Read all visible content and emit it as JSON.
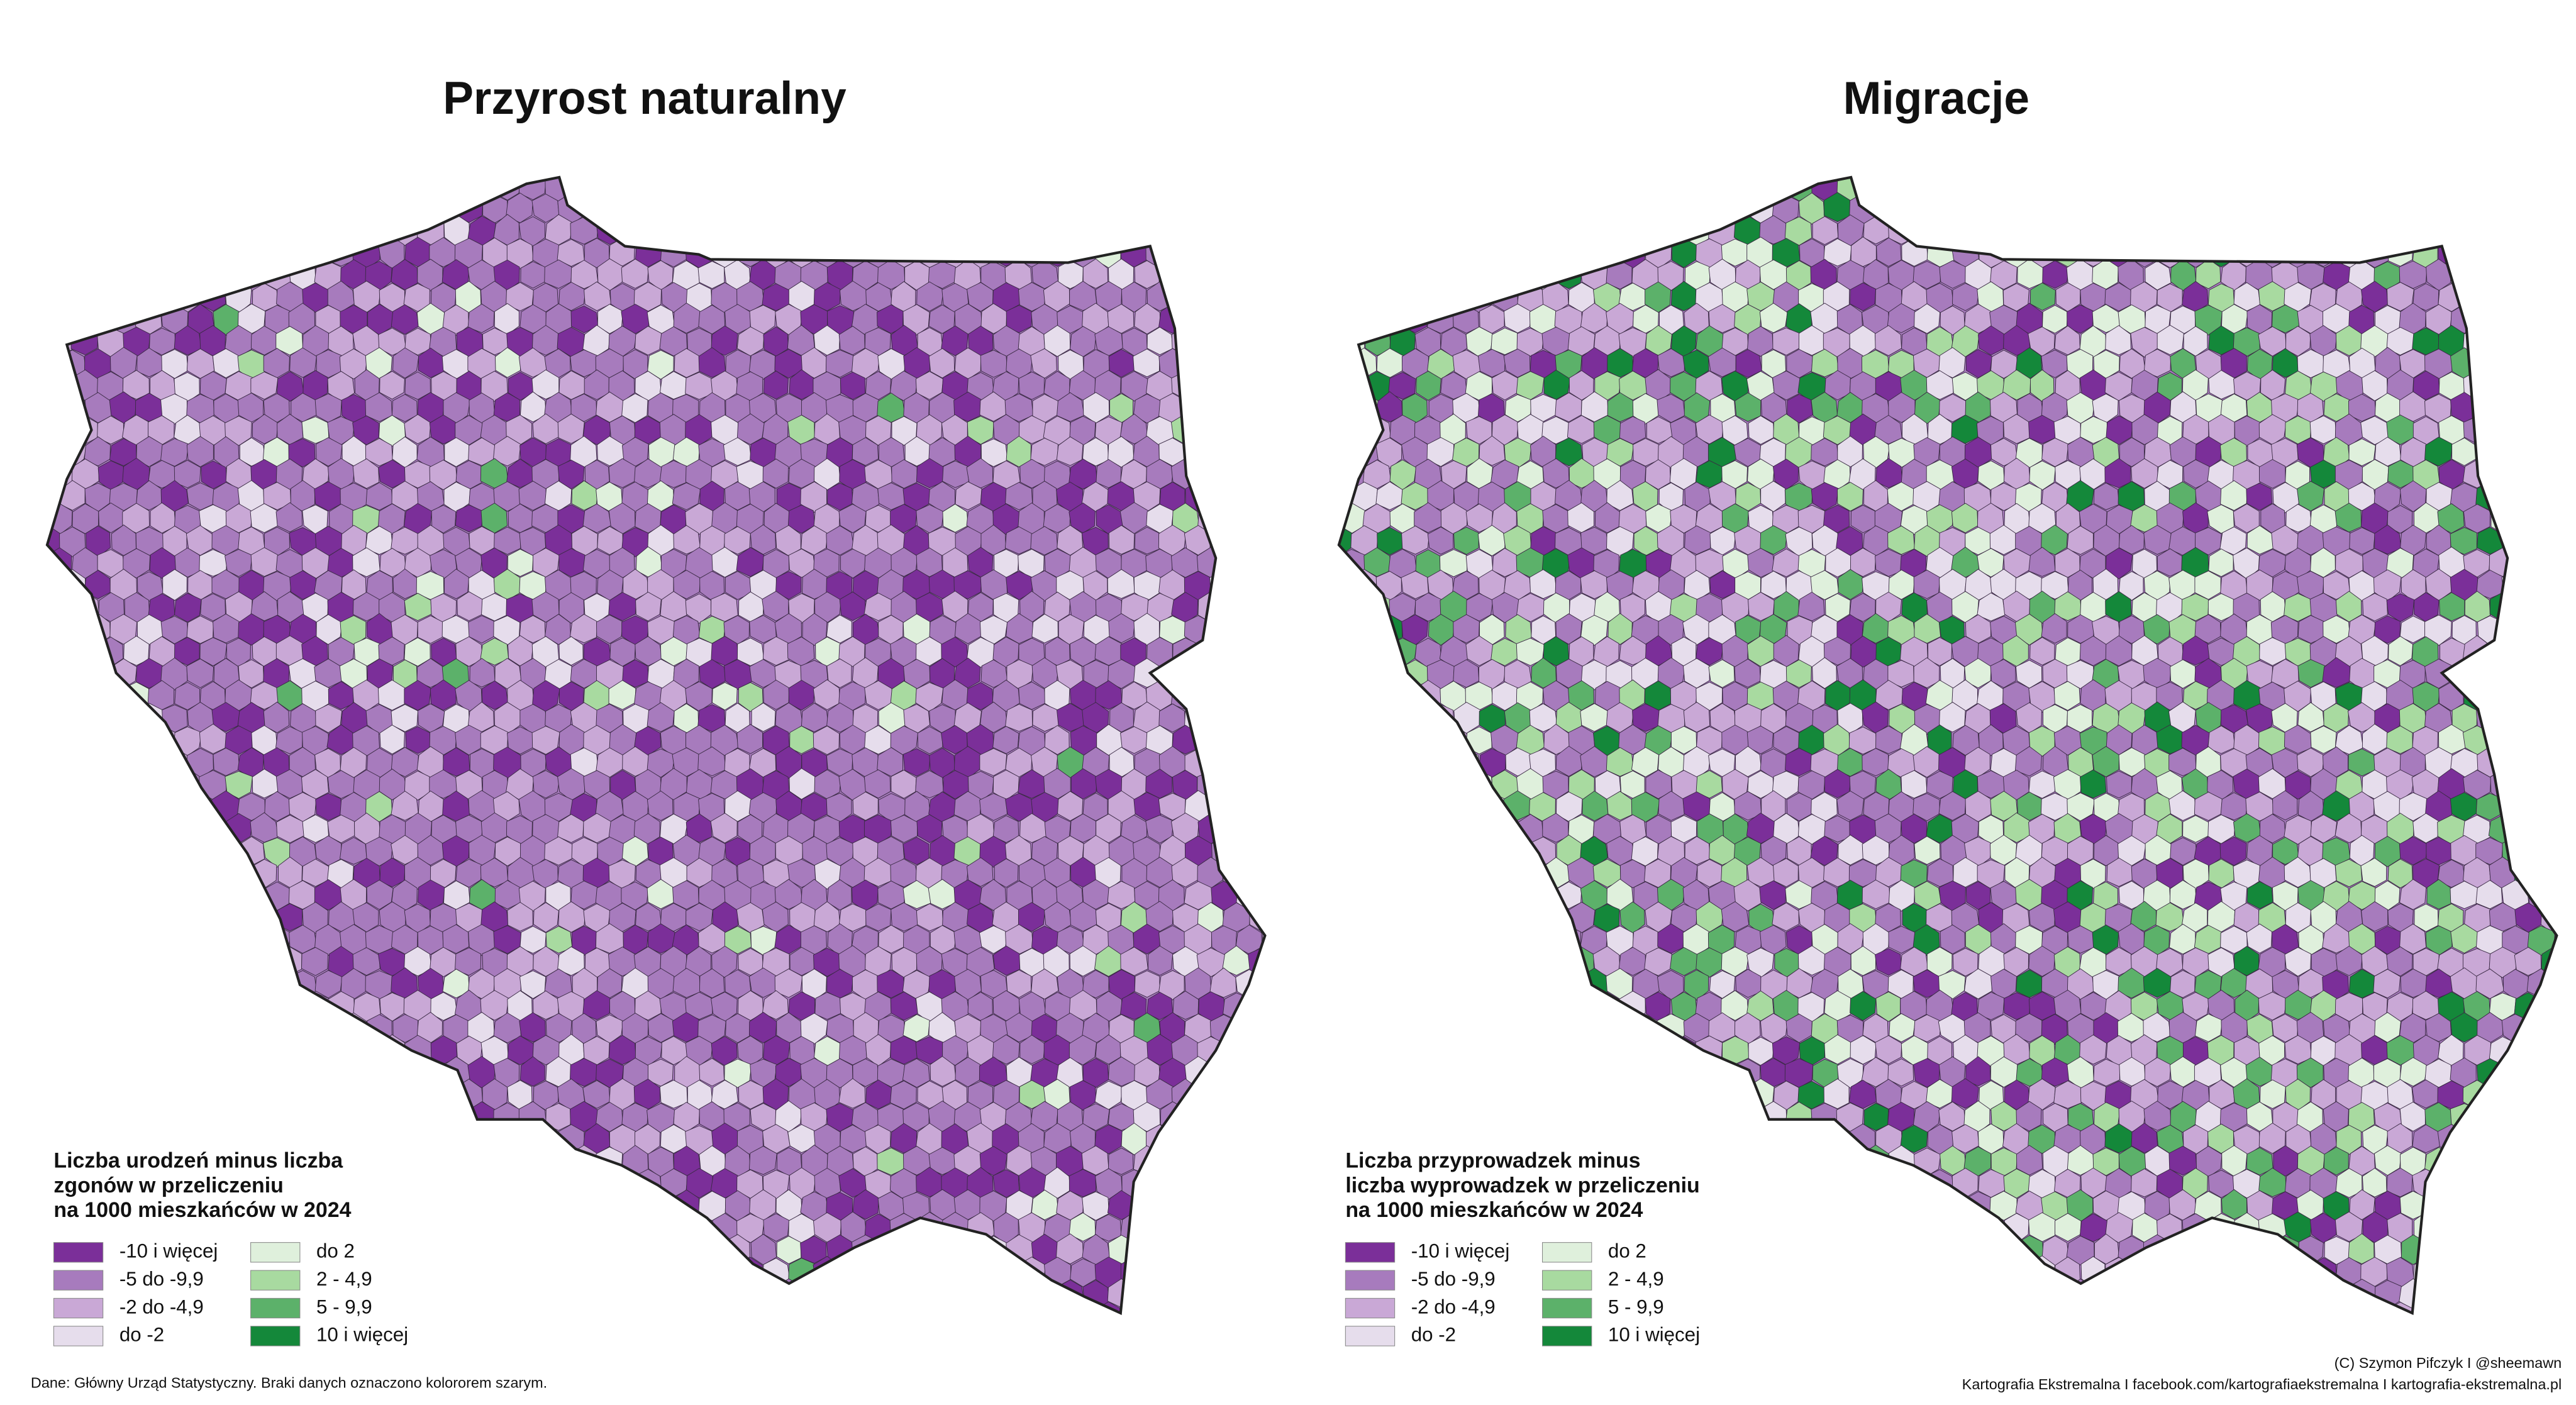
{
  "maps": [
    {
      "title": "Przyrost naturalny",
      "legend": {
        "title": [
          "Liczba urodzeń minus liczba",
          "zgonów w przeliczeniu",
          "na 1000 mieszkańców w 2024"
        ],
        "items": [
          {
            "label": "-10 i więcej",
            "color": "#7b2f99"
          },
          {
            "label": "-5 do -9,9",
            "color": "#a77bbd"
          },
          {
            "label": "-2 do -4,9",
            "color": "#c9a8d6"
          },
          {
            "label": "do -2",
            "color": "#e6ddec"
          },
          {
            "label": "do 2",
            "color": "#dff0dc"
          },
          {
            "label": "2 - 4,9",
            "color": "#a8daa0"
          },
          {
            "label": "5 - 9,9",
            "color": "#5cb16a"
          },
          {
            "label": "10 i więcej",
            "color": "#14883a"
          }
        ]
      }
    },
    {
      "title": "Migracje",
      "legend": {
        "title": [
          "Liczba przyprowadzek minus",
          "liczba wyprowadzek w przeliczeniu",
          "na 1000 mieszkańców w 2024"
        ],
        "items": [
          {
            "label": "-10 i więcej",
            "color": "#7b2f99"
          },
          {
            "label": "-5 do -9,9",
            "color": "#a77bbd"
          },
          {
            "label": "-2 do -4,9",
            "color": "#c9a8d6"
          },
          {
            "label": "do -2",
            "color": "#e6ddec"
          },
          {
            "label": "do 2",
            "color": "#dff0dc"
          },
          {
            "label": "2 - 4,9",
            "color": "#a8daa0"
          },
          {
            "label": "5 - 9,9",
            "color": "#5cb16a"
          },
          {
            "label": "10 i więcej",
            "color": "#14883a"
          }
        ]
      }
    }
  ],
  "footer": {
    "source": "Dane: Główny Urząd Statystyczny. Braki danych oznaczono kolororem szarym.",
    "credit": "(C) Szymon Pifczyk I @sheemawn",
    "links": "Kartografia Ekstremalna I facebook.com/kartografiaekstremalna I kartografia-ekstremalna.pl"
  }
}
